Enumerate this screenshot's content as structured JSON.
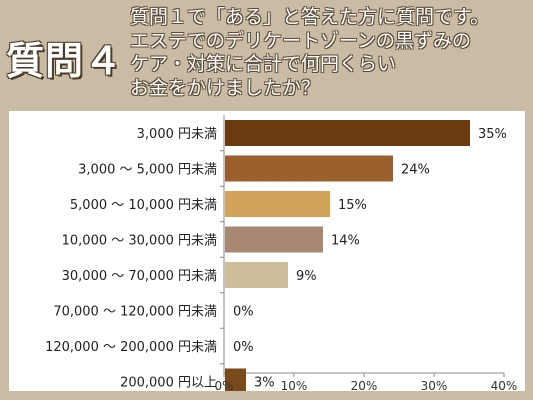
{
  "header": {
    "badge": "質問４",
    "question_lines": [
      "質問１で「ある」と答えた方に質問です。",
      "エステでのデリケートゾーンの黒ずみの",
      "ケア・対策に合計で何円くらい",
      "お金をかけましたか？"
    ]
  },
  "chart_data": {
    "type": "bar",
    "orientation": "horizontal",
    "categories": [
      "3,000 円未満",
      "3,000 ～ 5,000 円未満",
      "5,000 ～ 10,000 円未満",
      "10,000 ～ 30,000 円未満",
      "30,000 ～ 70,000 円未満",
      "70,000 ～ 120,000 円未満",
      "120,000 ～ 200,000 円未満",
      "200,000 円以上"
    ],
    "values": [
      35,
      24,
      15,
      14,
      9,
      0,
      0,
      3
    ],
    "value_labels": [
      "35%",
      "24%",
      "15%",
      "14%",
      "9%",
      "0%",
      "0%",
      "3%"
    ],
    "colors": [
      "#6b3a0e",
      "#9a5f2c",
      "#d2a35a",
      "#a78872",
      "#cdbd9a",
      "#ffffff",
      "#ffffff",
      "#7a4a1a"
    ],
    "xlim": [
      0,
      40
    ],
    "xticks": [
      "0%",
      "10%",
      "20%",
      "30%",
      "40%"
    ],
    "grid": false,
    "title": "",
    "xlabel": "",
    "ylabel": ""
  }
}
